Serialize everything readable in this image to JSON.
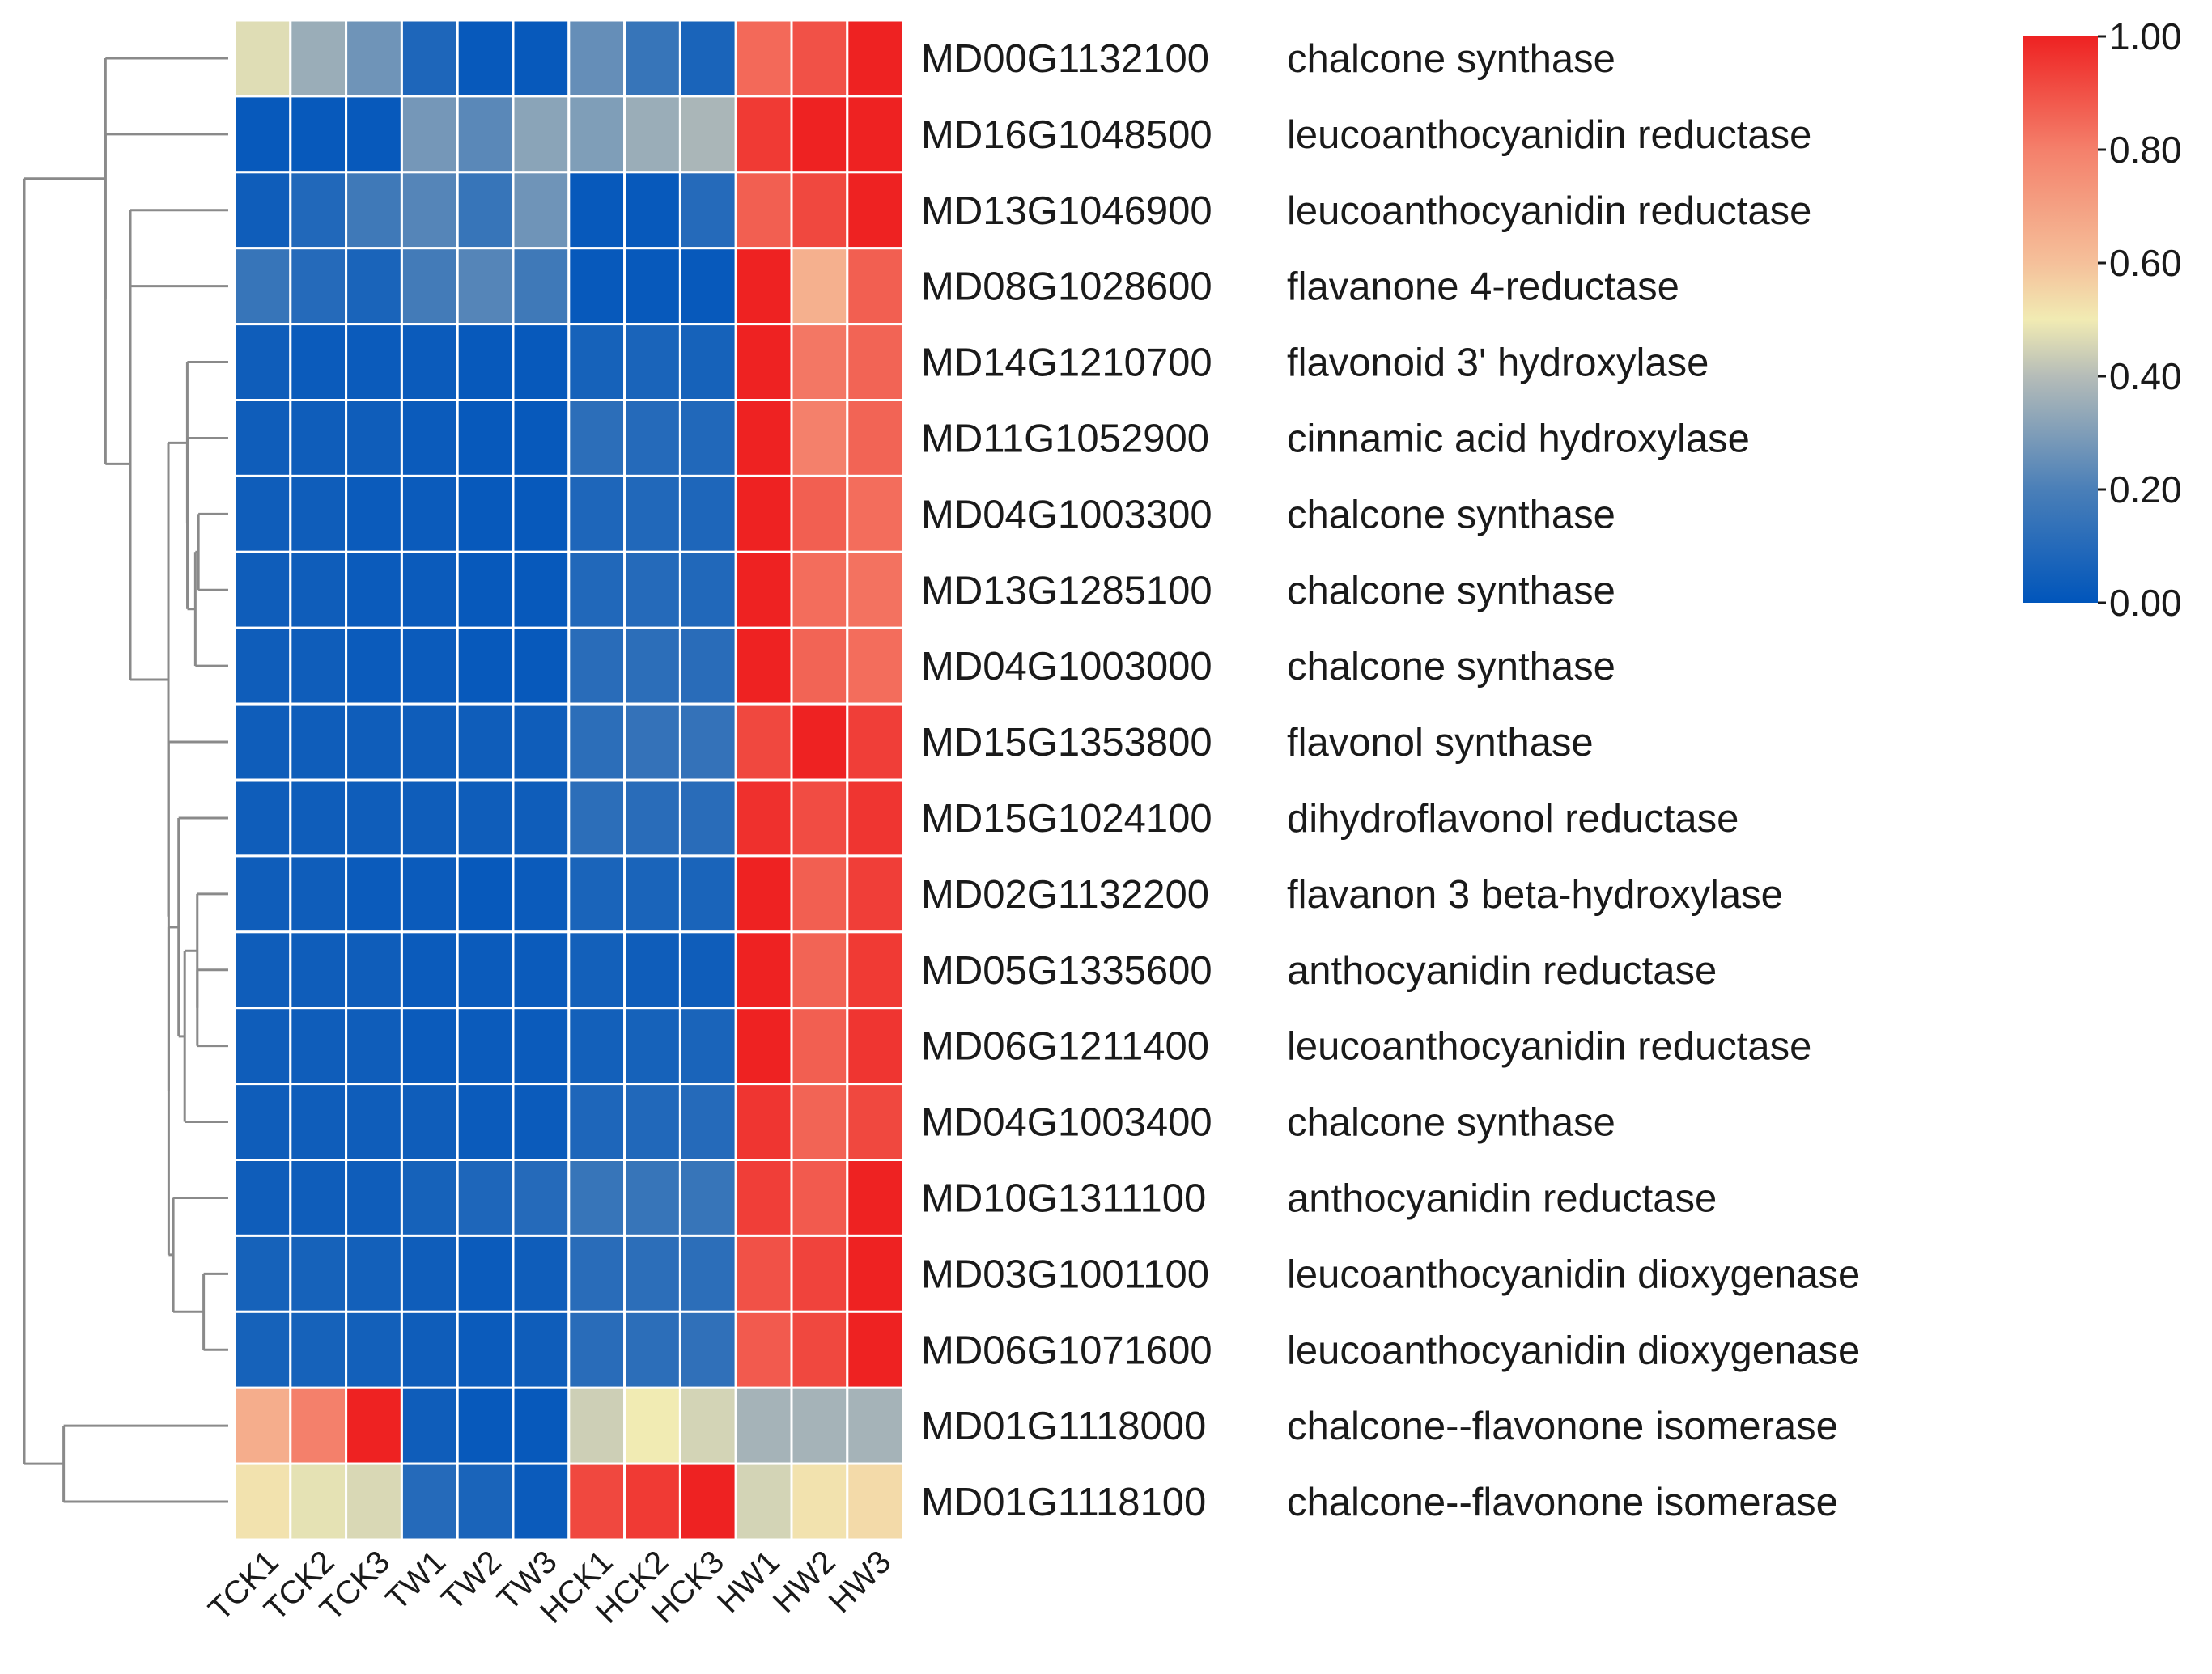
{
  "chart_data": {
    "type": "heatmap",
    "title": "",
    "columns": [
      "TCK1",
      "TCK2",
      "TCK3",
      "TW1",
      "TW2",
      "TW3",
      "HCK1",
      "HCK2",
      "HCK3",
      "HW1",
      "HW2",
      "HW3"
    ],
    "rows": [
      {
        "gene": "MD00G1132100",
        "annotation": "chalcone synthase",
        "values": [
          0.47,
          0.35,
          0.27,
          0.08,
          0.02,
          0.02,
          0.25,
          0.15,
          0.07,
          0.85,
          0.9,
          1.0
        ]
      },
      {
        "gene": "MD16G1048500",
        "annotation": "leucoanthocyanidin reductase",
        "values": [
          0.02,
          0.02,
          0.02,
          0.28,
          0.23,
          0.32,
          0.3,
          0.35,
          0.38,
          0.95,
          1.0,
          1.0
        ]
      },
      {
        "gene": "MD13G1046900",
        "annotation": "leucoanthocyanidin reductase",
        "values": [
          0.04,
          0.09,
          0.17,
          0.22,
          0.15,
          0.27,
          0.02,
          0.02,
          0.1,
          0.87,
          0.92,
          1.0
        ]
      },
      {
        "gene": "MD08G1028600",
        "annotation": "flavanone 4-reductase",
        "values": [
          0.15,
          0.1,
          0.07,
          0.18,
          0.22,
          0.17,
          0.02,
          0.02,
          0.02,
          1.0,
          0.65,
          0.87
        ]
      },
      {
        "gene": "MD14G1210700",
        "annotation": "flavonoid 3' hydroxylase",
        "values": [
          0.04,
          0.03,
          0.03,
          0.03,
          0.02,
          0.02,
          0.06,
          0.07,
          0.06,
          1.0,
          0.82,
          0.86
        ]
      },
      {
        "gene": "MD11G1052900",
        "annotation": "cinnamic acid hydroxylase",
        "values": [
          0.04,
          0.04,
          0.04,
          0.03,
          0.02,
          0.02,
          0.12,
          0.1,
          0.09,
          1.0,
          0.8,
          0.86
        ]
      },
      {
        "gene": "MD04G1003300",
        "annotation": "chalcone synthase",
        "values": [
          0.04,
          0.04,
          0.03,
          0.03,
          0.02,
          0.02,
          0.08,
          0.09,
          0.08,
          1.0,
          0.87,
          0.84
        ]
      },
      {
        "gene": "MD13G1285100",
        "annotation": "chalcone synthase",
        "values": [
          0.04,
          0.04,
          0.03,
          0.03,
          0.02,
          0.02,
          0.09,
          0.1,
          0.09,
          1.0,
          0.84,
          0.83
        ]
      },
      {
        "gene": "MD04G1003000",
        "annotation": "chalcone synthase",
        "values": [
          0.04,
          0.04,
          0.03,
          0.03,
          0.02,
          0.02,
          0.11,
          0.12,
          0.11,
          1.0,
          0.86,
          0.84
        ]
      },
      {
        "gene": "MD15G1353800",
        "annotation": "flavonol synthase",
        "values": [
          0.04,
          0.04,
          0.04,
          0.04,
          0.04,
          0.04,
          0.12,
          0.14,
          0.14,
          0.92,
          1.0,
          0.94
        ]
      },
      {
        "gene": "MD15G1024100",
        "annotation": "dihydroflavonol reductase",
        "values": [
          0.04,
          0.04,
          0.04,
          0.04,
          0.04,
          0.04,
          0.12,
          0.11,
          0.11,
          0.97,
          0.91,
          0.96
        ]
      },
      {
        "gene": "MD02G1132200",
        "annotation": "flavanon 3 beta-hydroxylase",
        "values": [
          0.04,
          0.04,
          0.03,
          0.03,
          0.02,
          0.03,
          0.07,
          0.07,
          0.07,
          1.0,
          0.87,
          0.94
        ]
      },
      {
        "gene": "MD05G1335600",
        "annotation": "anthocyanidin reductase",
        "values": [
          0.04,
          0.04,
          0.04,
          0.03,
          0.03,
          0.03,
          0.05,
          0.04,
          0.04,
          1.0,
          0.86,
          0.95
        ]
      },
      {
        "gene": "MD06G1211400",
        "annotation": "leucoanthocyanidin reductase",
        "values": [
          0.04,
          0.04,
          0.04,
          0.03,
          0.03,
          0.03,
          0.05,
          0.06,
          0.07,
          1.0,
          0.87,
          0.96
        ]
      },
      {
        "gene": "MD04G1003400",
        "annotation": "chalcone synthase",
        "values": [
          0.04,
          0.04,
          0.04,
          0.04,
          0.03,
          0.03,
          0.08,
          0.09,
          0.1,
          0.96,
          0.86,
          0.92
        ]
      },
      {
        "gene": "MD10G1311100",
        "annotation": "anthocyanidin reductase",
        "values": [
          0.04,
          0.04,
          0.04,
          0.06,
          0.08,
          0.1,
          0.15,
          0.15,
          0.15,
          0.94,
          0.88,
          1.0
        ]
      },
      {
        "gene": "MD03G1001100",
        "annotation": "leucoanthocyanidin dioxygenase",
        "values": [
          0.06,
          0.06,
          0.05,
          0.04,
          0.03,
          0.04,
          0.11,
          0.12,
          0.12,
          0.9,
          0.93,
          1.0
        ]
      },
      {
        "gene": "MD06G1071600",
        "annotation": "leucoanthocyanidin dioxygenase",
        "values": [
          0.06,
          0.06,
          0.05,
          0.04,
          0.03,
          0.04,
          0.11,
          0.12,
          0.13,
          0.88,
          0.92,
          1.0
        ]
      },
      {
        "gene": "MD01G1118000",
        "annotation": "chalcone--flavonone isomerase",
        "values": [
          0.66,
          0.8,
          1.0,
          0.04,
          0.02,
          0.02,
          0.44,
          0.5,
          0.45,
          0.37,
          0.37,
          0.37
        ]
      },
      {
        "gene": "MD01G1118100",
        "annotation": "chalcone--flavonone isomerase",
        "values": [
          0.52,
          0.48,
          0.46,
          0.1,
          0.07,
          0.03,
          0.92,
          0.95,
          1.0,
          0.45,
          0.52,
          0.54
        ]
      }
    ],
    "colorbar": {
      "range": [
        0,
        1
      ],
      "ticks": [
        "0.00",
        "0.20",
        "0.40",
        "0.60",
        "0.80",
        "1.00"
      ],
      "stops": [
        {
          "value": 0.0,
          "color": "#0055bb"
        },
        {
          "value": 0.2,
          "color": "#4a7fb8"
        },
        {
          "value": 0.4,
          "color": "#b5bcb8"
        },
        {
          "value": 0.5,
          "color": "#f1ebb3"
        },
        {
          "value": 0.6,
          "color": "#f5c09a"
        },
        {
          "value": 0.8,
          "color": "#f4806b"
        },
        {
          "value": 1.0,
          "color": "#ee2222"
        }
      ],
      "legend_position": "top-right"
    },
    "row_dendrogram": "left",
    "cell_border_color": "#ffffff",
    "dendrogram_color": "#8a8a8a"
  }
}
